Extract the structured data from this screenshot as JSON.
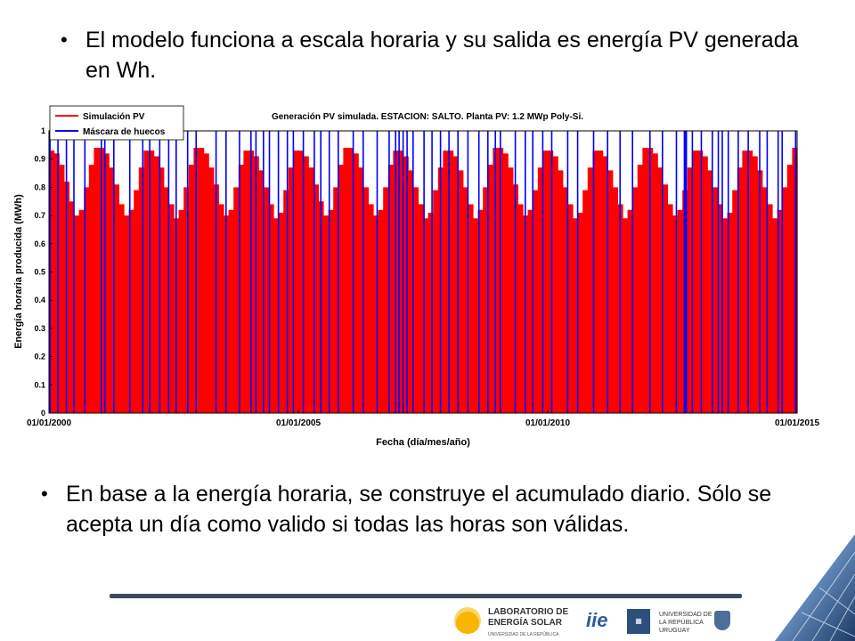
{
  "bullets": {
    "b1": "El modelo funciona a escala horaria y su salida es energía PV generada en Wh.",
    "b2": "En base a la energía horaria, se construye el acumulado diario. Sólo se acepta un día como valido si todas las horas son válidas.",
    "bullet_char": "•"
  },
  "footer": {
    "lab_name": "LABORATORIO DE ENERGÍA SOLAR",
    "lab_sub": "UNIVERSIDAD DE LA REPÚBLICA",
    "iie": "iie",
    "udelar": "UNIVERSIDAD DE LA REPÚBLICA URUGUAY"
  },
  "chart_data": {
    "type": "bar",
    "title": "Generación PV simulada. ESTACION: SALTO. Planta PV: 1.2 MWp Poly-Si.",
    "xlabel": "Fecha (día/mes/año)",
    "ylabel": "Energía horaria producida (MWh)",
    "xlim": [
      2000,
      2015
    ],
    "ylim": [
      0,
      1
    ],
    "x_ticks": [
      2000,
      2005,
      2010,
      2015
    ],
    "x_tick_labels": [
      "01/01/2000",
      "01/01/2005",
      "01/01/2010",
      "01/01/2015"
    ],
    "y_ticks": [
      0,
      0.1,
      0.2,
      0.3,
      0.4,
      0.5,
      0.6,
      0.7,
      0.8,
      0.9,
      1
    ],
    "y_tick_labels": [
      "0",
      "0.1",
      "0.2",
      "0.3",
      "0.4",
      "0.5",
      "0.6",
      "0.7",
      "0.8",
      "0.9",
      "1"
    ],
    "legend": {
      "position": "top-left",
      "entries": [
        "Simulación PV",
        "Máscara de huecos"
      ]
    },
    "colors": {
      "pv": "#ff0000",
      "mask": "#0000ff"
    },
    "series": [
      {
        "name": "Simulación PV",
        "x": [
          2000.0,
          2000.1,
          2000.2,
          2000.3,
          2000.4,
          2000.5,
          2000.6,
          2000.7,
          2000.8,
          2000.9,
          2001.0,
          2001.1,
          2001.2,
          2001.3,
          2001.4,
          2001.5,
          2001.6,
          2001.7,
          2001.8,
          2001.9,
          2002.0,
          2002.1,
          2002.2,
          2002.3,
          2002.4,
          2002.5,
          2002.6,
          2002.7,
          2002.8,
          2002.9,
          2003.0,
          2003.1,
          2003.2,
          2003.3,
          2003.4,
          2003.5,
          2003.6,
          2003.7,
          2003.8,
          2003.9,
          2004.0,
          2004.1,
          2004.2,
          2004.3,
          2004.4,
          2004.5,
          2004.6,
          2004.7,
          2004.8,
          2004.9,
          2005.0,
          2005.1,
          2005.2,
          2005.3,
          2005.4,
          2005.5,
          2005.6,
          2005.7,
          2005.8,
          2005.9,
          2006.0,
          2006.1,
          2006.2,
          2006.3,
          2006.4,
          2006.5,
          2006.6,
          2006.7,
          2006.8,
          2006.9,
          2007.0,
          2007.1,
          2007.2,
          2007.3,
          2007.4,
          2007.5,
          2007.6,
          2007.7,
          2007.8,
          2007.9,
          2008.0,
          2008.1,
          2008.2,
          2008.3,
          2008.4,
          2008.5,
          2008.6,
          2008.7,
          2008.8,
          2008.9,
          2009.0,
          2009.1,
          2009.2,
          2009.3,
          2009.4,
          2009.5,
          2009.6,
          2009.7,
          2009.8,
          2009.9,
          2010.0,
          2010.1,
          2010.2,
          2010.3,
          2010.4,
          2010.5,
          2010.6,
          2010.7,
          2010.8,
          2010.9,
          2011.0,
          2011.1,
          2011.2,
          2011.3,
          2011.4,
          2011.5,
          2011.6,
          2011.7,
          2011.8,
          2011.9,
          2012.0,
          2012.1,
          2012.2,
          2012.3,
          2012.4,
          2012.5,
          2012.6,
          2012.7,
          2012.8,
          2012.9,
          2013.0,
          2013.1,
          2013.2,
          2013.3,
          2013.4,
          2013.5,
          2013.6,
          2013.7,
          2013.8,
          2013.9,
          2014.0,
          2014.1,
          2014.2,
          2014.3,
          2014.4,
          2014.5,
          2014.6,
          2014.7,
          2014.8,
          2014.9
        ],
        "y": [
          0.93,
          0.92,
          0.88,
          0.82,
          0.75,
          0.7,
          0.72,
          0.8,
          0.88,
          0.94,
          0.94,
          0.92,
          0.87,
          0.81,
          0.74,
          0.7,
          0.72,
          0.79,
          0.87,
          0.93,
          0.93,
          0.91,
          0.87,
          0.8,
          0.74,
          0.69,
          0.72,
          0.8,
          0.88,
          0.94,
          0.94,
          0.92,
          0.87,
          0.81,
          0.74,
          0.7,
          0.72,
          0.8,
          0.88,
          0.93,
          0.93,
          0.91,
          0.86,
          0.8,
          0.74,
          0.69,
          0.71,
          0.79,
          0.87,
          0.93,
          0.93,
          0.91,
          0.87,
          0.81,
          0.75,
          0.7,
          0.72,
          0.8,
          0.88,
          0.94,
          0.94,
          0.92,
          0.87,
          0.8,
          0.74,
          0.7,
          0.72,
          0.8,
          0.88,
          0.93,
          0.93,
          0.91,
          0.86,
          0.8,
          0.74,
          0.69,
          0.71,
          0.79,
          0.87,
          0.93,
          0.93,
          0.91,
          0.86,
          0.8,
          0.74,
          0.69,
          0.72,
          0.8,
          0.88,
          0.94,
          0.94,
          0.92,
          0.87,
          0.81,
          0.74,
          0.7,
          0.72,
          0.79,
          0.87,
          0.93,
          0.93,
          0.91,
          0.86,
          0.8,
          0.74,
          0.69,
          0.71,
          0.79,
          0.87,
          0.93,
          0.93,
          0.91,
          0.86,
          0.8,
          0.74,
          0.69,
          0.72,
          0.8,
          0.88,
          0.94,
          0.94,
          0.92,
          0.87,
          0.81,
          0.74,
          0.7,
          0.72,
          0.79,
          0.87,
          0.93,
          0.93,
          0.91,
          0.86,
          0.8,
          0.74,
          0.69,
          0.71,
          0.79,
          0.87,
          0.93,
          0.93,
          0.91,
          0.86,
          0.8,
          0.74,
          0.69,
          0.72,
          0.8,
          0.88,
          0.94
        ]
      },
      {
        "name": "Máscara de huecos",
        "x": [
          2000.02,
          2000.18,
          2000.35,
          2000.5,
          2000.72,
          2001.05,
          2001.12,
          2001.3,
          2001.62,
          2001.88,
          2002.02,
          2002.22,
          2002.4,
          2002.55,
          2002.78,
          2002.95,
          2003.35,
          2003.55,
          2003.82,
          2004.05,
          2004.15,
          2004.3,
          2004.42,
          2004.6,
          2004.78,
          2004.9,
          2005.1,
          2005.32,
          2005.45,
          2005.62,
          2005.8,
          2006.1,
          2006.3,
          2006.58,
          2006.82,
          2006.95,
          2007.02,
          2007.1,
          2007.18,
          2007.3,
          2007.52,
          2007.68,
          2007.85,
          2008.02,
          2008.2,
          2008.4,
          2008.62,
          2008.8,
          2008.95,
          2009.05,
          2009.35,
          2009.55,
          2009.7,
          2009.9,
          2010.08,
          2010.4,
          2010.6,
          2010.92,
          2011.2,
          2011.45,
          2011.7,
          2012.05,
          2012.3,
          2012.58,
          2012.74,
          2012.76,
          2012.78,
          2012.9,
          2013.08,
          2013.3,
          2013.42,
          2013.5,
          2013.62,
          2013.82,
          2014.02,
          2014.25,
          2014.4,
          2014.62,
          2014.7,
          2014.97
        ]
      }
    ]
  }
}
